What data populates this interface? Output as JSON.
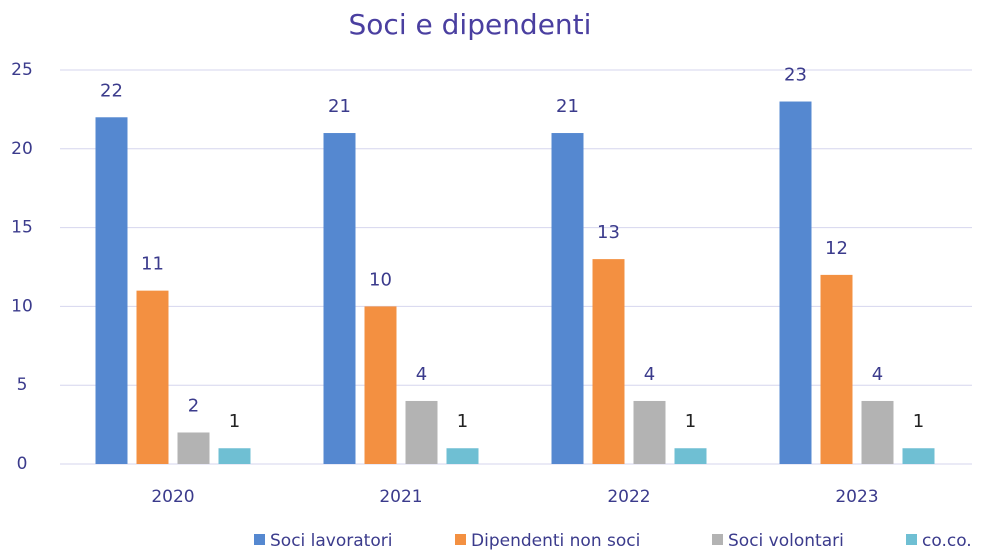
{
  "chart_data": {
    "type": "bar",
    "title": "Soci e dipendenti",
    "categories": [
      "2020",
      "2021",
      "2022",
      "2023"
    ],
    "series": [
      {
        "name": "Soci lavoratori",
        "color": "#5588d0",
        "values": [
          22,
          21,
          21,
          23
        ]
      },
      {
        "name": "Dipendenti non soci",
        "color": "#f39041",
        "values": [
          11,
          10,
          13,
          12
        ]
      },
      {
        "name": "Soci volontari",
        "color": "#b3b3b3",
        "values": [
          2,
          4,
          4,
          4
        ]
      },
      {
        "name": "co.co.",
        "color": "#6fbfd3",
        "values": [
          1,
          1,
          1,
          1
        ]
      }
    ],
    "ylim": [
      0,
      25
    ],
    "yticks": [
      0,
      5,
      10,
      15,
      20,
      25
    ],
    "grid": true,
    "legend": "bottom"
  }
}
